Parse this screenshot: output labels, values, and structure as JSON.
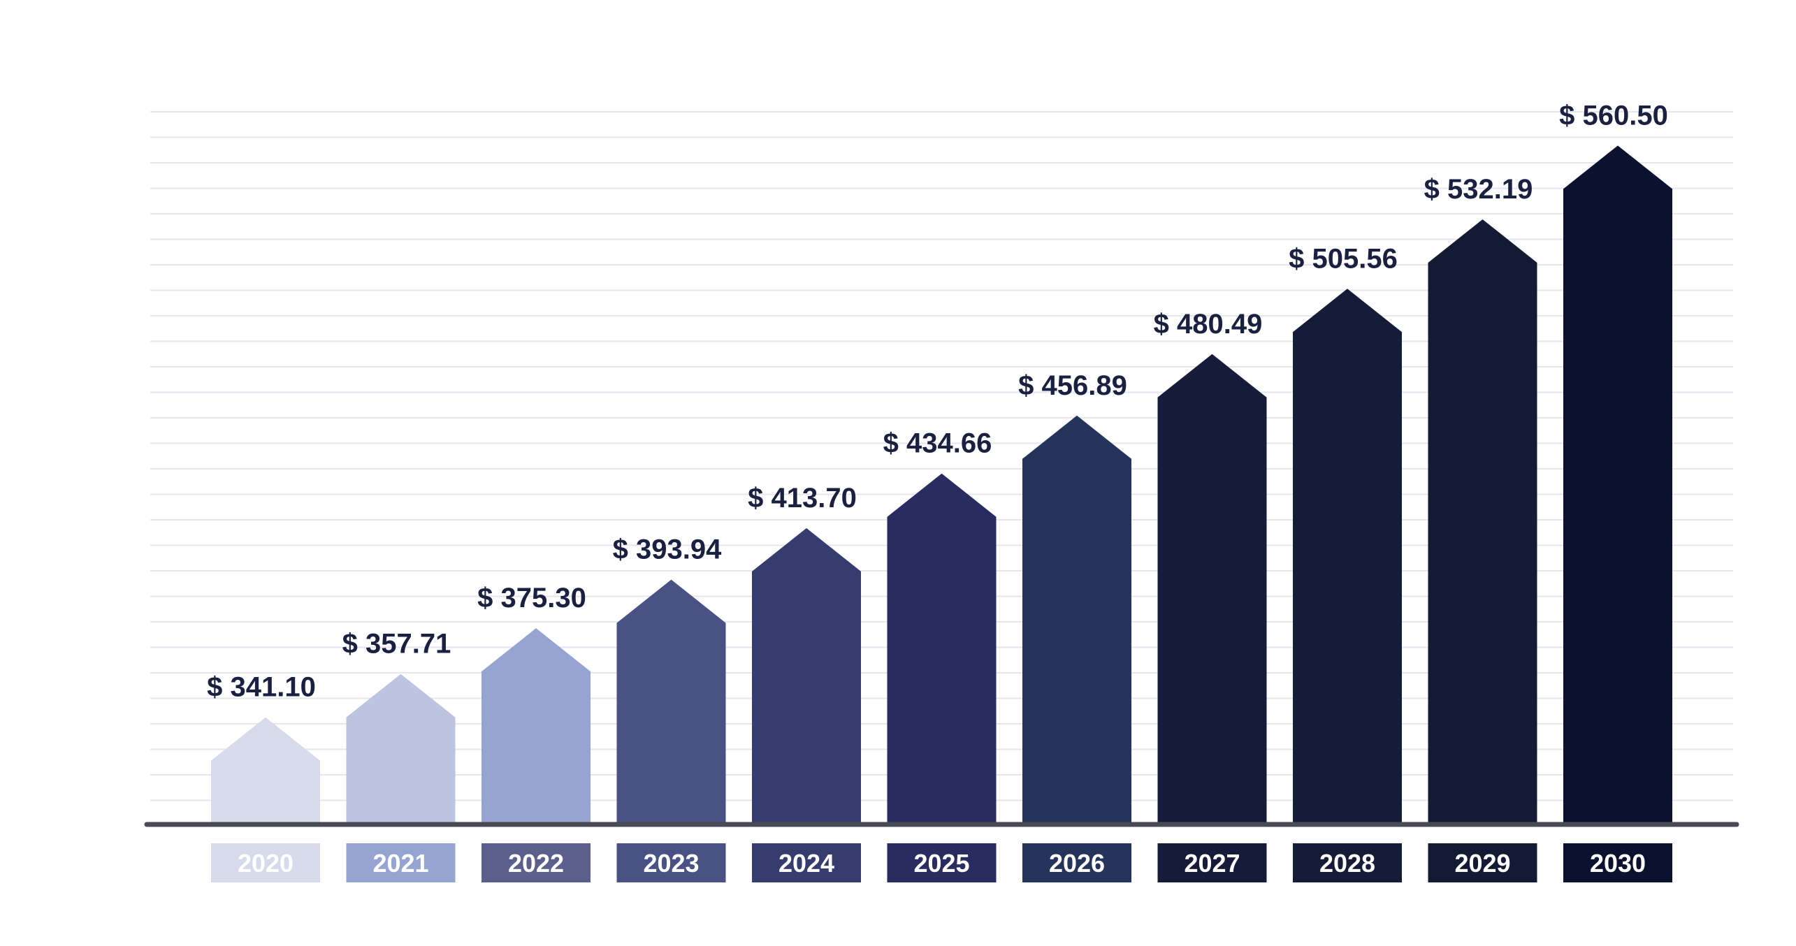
{
  "chart_data": {
    "type": "bar",
    "bar_shape": "arrow",
    "categories": [
      "2020",
      "2021",
      "2022",
      "2023",
      "2024",
      "2025",
      "2026",
      "2027",
      "2028",
      "2029",
      "2030"
    ],
    "values": [
      341.1,
      357.71,
      375.3,
      393.94,
      413.7,
      434.66,
      456.89,
      480.49,
      505.56,
      532.19,
      560.5
    ],
    "value_labels": [
      "$ 341.10",
      "$ 357.71",
      "$ 375.30",
      "$ 393.94",
      "$ 413.70",
      "$ 434.66",
      "$ 456.89",
      "$ 480.49",
      "$ 505.56",
      "$ 532.19",
      "$ 560.50"
    ],
    "ylim": [
      300,
      574
    ],
    "grid": true,
    "bar_colors": [
      "#d6daea",
      "#bcc4e0",
      "#95a4d0",
      "#4a5184",
      "#373c6e",
      "#282c60",
      "#25345a",
      "#161b3a",
      "#151c38",
      "#131a33",
      "#0b1230"
    ],
    "label_box_colors": [
      "#d6daea",
      "#95a4d0",
      "#5a5f8c",
      "#4a5184",
      "#373c6e",
      "#282c60",
      "#25345a",
      "#161b3a",
      "#151c38",
      "#131a33",
      "#0b1230"
    ],
    "axis_color": "#4a4a55",
    "grid_color": "#e6e6ec"
  }
}
